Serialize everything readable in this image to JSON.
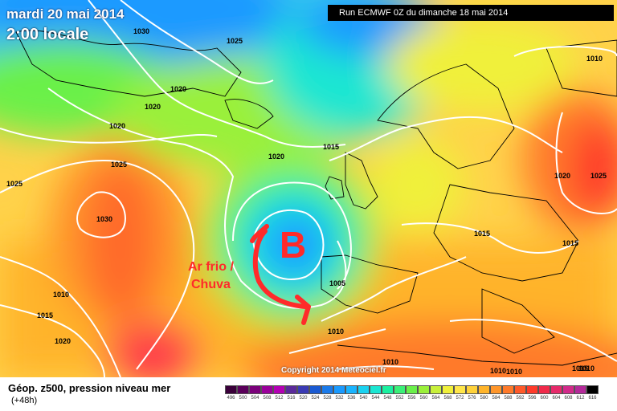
{
  "header": {
    "date": "mardi 20 mai 2014",
    "time": "2:00 locale",
    "run": "Run ECMWF 0Z du dimanche 18 mai 2014"
  },
  "copyright": "Copyright 2014 Meteociel.fr",
  "footer": {
    "caption": "Géop. z500, pression niveau mer",
    "lead": "(+48h)"
  },
  "annotation": {
    "low_label": "B",
    "text_line1": "Ar frio /",
    "text_line2": "Chuva",
    "color": "#ff2a2a"
  },
  "isobar_labels": [
    "1030",
    "1025",
    "1020",
    "1020",
    "1020",
    "1025",
    "1030",
    "1025",
    "1020",
    "1015",
    "1010",
    "1010",
    "1015",
    "1020",
    "1005",
    "1010",
    "1010",
    "1015",
    "1015",
    "1020",
    "1025",
    "1010",
    "1010",
    "1015",
    "1010"
  ],
  "scale": {
    "labels": [
      "496",
      "500",
      "504",
      "508",
      "512",
      "516",
      "520",
      "524",
      "528",
      "532",
      "536",
      "540",
      "544",
      "548",
      "552",
      "556",
      "560",
      "564",
      "568",
      "572",
      "576",
      "580",
      "584",
      "588",
      "592",
      "596",
      "600",
      "604",
      "608",
      "612",
      "616"
    ],
    "colors": [
      "#3a003a",
      "#5a005a",
      "#7a007a",
      "#9a009a",
      "#b400b4",
      "#5a2a9a",
      "#3a3ab4",
      "#1a5ad2",
      "#1a7aea",
      "#1a9aff",
      "#1ab4ff",
      "#1ad2f0",
      "#1ae6d2",
      "#1af0a0",
      "#3af078",
      "#6af04a",
      "#9af03a",
      "#c8f03a",
      "#f0f03a",
      "#ffe64a",
      "#ffd23a",
      "#ffb42a",
      "#ff962a",
      "#ff7a2a",
      "#ff5a2a",
      "#ff3a2a",
      "#f02a4a",
      "#e62a6a",
      "#d22a8a",
      "#b42a9a",
      "#000000"
    ]
  }
}
